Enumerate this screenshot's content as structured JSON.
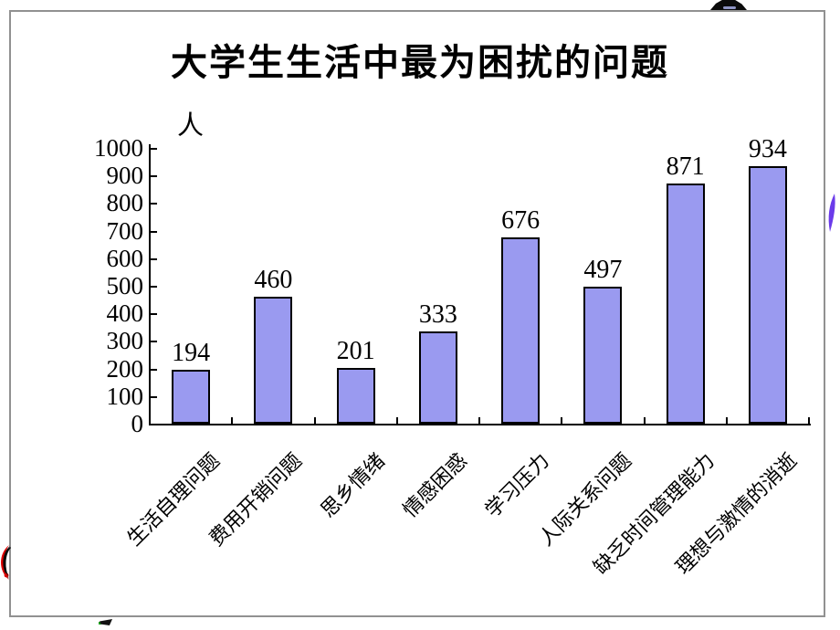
{
  "slide": {
    "background": "#ffffff",
    "frame_color": "#919191"
  },
  "chart_data": {
    "type": "bar",
    "title": "大学生生活中最为困扰的问题",
    "ylabel": "人",
    "xlabel": "",
    "categories": [
      "生活自理问题",
      "费用开销问题",
      "思乡情绪",
      "情感困惑",
      "学习压力",
      "人际关系问题",
      "缺乏时间管理能力",
      "理想与激情的消逝"
    ],
    "values": [
      194,
      460,
      201,
      333,
      676,
      497,
      871,
      934
    ],
    "data_labels_shown": true,
    "ylim": [
      0,
      1000
    ],
    "ytick_step": 100,
    "yticks": [
      0,
      100,
      200,
      300,
      400,
      500,
      600,
      700,
      800,
      900,
      1000
    ],
    "grid": false,
    "legend_position": "none",
    "category_label_rotation_deg": -45,
    "bar_color": "#9A9AF0",
    "bar_border_color": "#000000",
    "axis_color": "#000000"
  },
  "decorations": {
    "top_right_shape": "black-arc-shape",
    "top_right_inner": "blue-glint",
    "right_edge_shape": "purple-sliver",
    "left_edge_shape": "red-black-crescent",
    "bottom_mark": "black-flag-mark",
    "colors": {
      "black": "#0B0B0B",
      "purple": "#6B3BEA",
      "red": "#D90000",
      "green": "#1F9F1F",
      "glint_blue": "#8F94C4"
    }
  }
}
